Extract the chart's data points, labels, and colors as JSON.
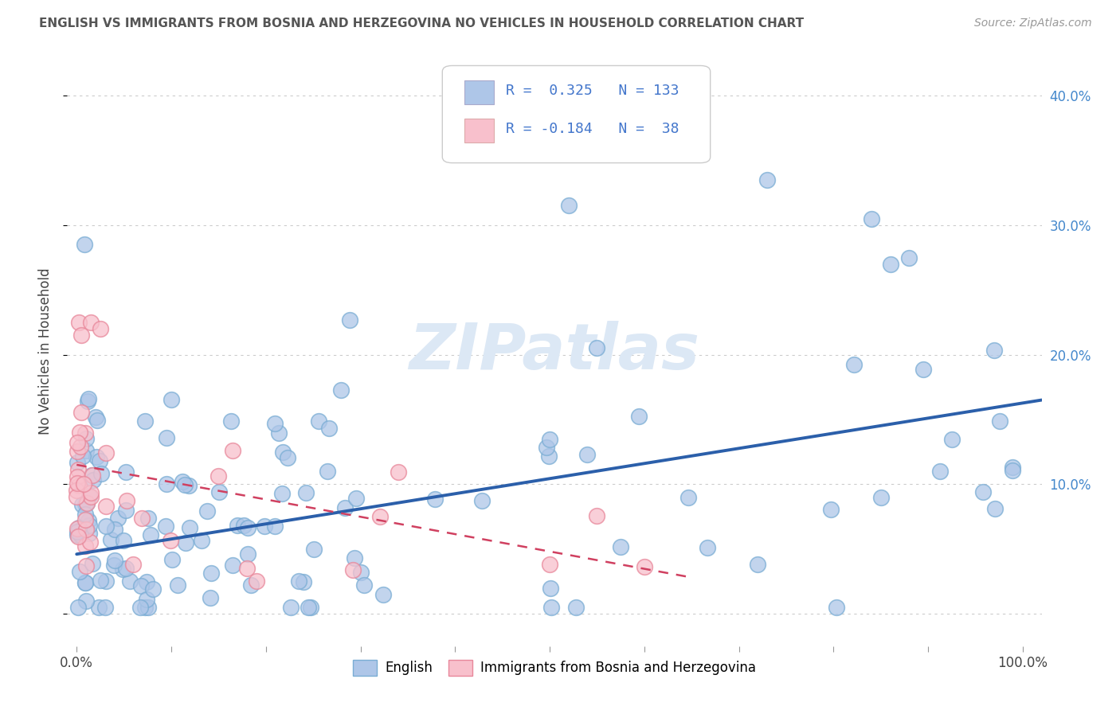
{
  "title": "ENGLISH VS IMMIGRANTS FROM BOSNIA AND HERZEGOVINA NO VEHICLES IN HOUSEHOLD CORRELATION CHART",
  "source_text": "Source: ZipAtlas.com",
  "ylabel": "No Vehicles in Household",
  "xlim": [
    -0.01,
    1.02
  ],
  "ylim": [
    -0.025,
    0.43
  ],
  "yticks": [
    0.0,
    0.1,
    0.2,
    0.3,
    0.4
  ],
  "ytick_labels_right": [
    "",
    "10.0%",
    "20.0%",
    "30.0%",
    "40.0%"
  ],
  "blue_color": "#aec6e8",
  "blue_edge_color": "#7aadd4",
  "blue_line_color": "#2b5faa",
  "pink_color": "#f8c0cc",
  "pink_edge_color": "#e8879a",
  "pink_line_color": "#d04060",
  "watermark_color": "#dce8f5",
  "background_color": "#ffffff",
  "grid_color": "#cccccc",
  "title_color": "#555555",
  "axis_label_color": "#444444",
  "legend_text_color": "#4477cc",
  "right_axis_color": "#4488cc",
  "blue_trendline_x": [
    0.0,
    1.02
  ],
  "blue_trendline_y": [
    0.046,
    0.165
  ],
  "pink_trendline_x": [
    0.0,
    0.65
  ],
  "pink_trendline_y": [
    0.115,
    0.028
  ]
}
